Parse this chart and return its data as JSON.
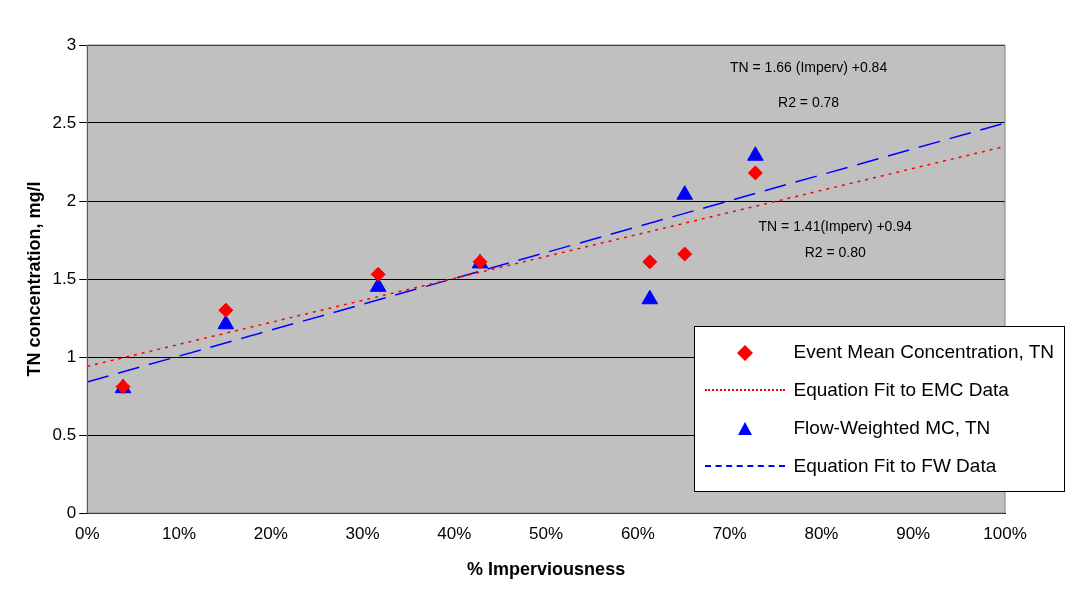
{
  "chart_data": {
    "type": "scatter",
    "xlabel": "% Imperviousness",
    "ylabel": "TN concentration, mg/l",
    "xlim": [
      0,
      100
    ],
    "xticks": [
      {
        "value": 0,
        "label": "0%"
      },
      {
        "value": 10,
        "label": "10%"
      },
      {
        "value": 20,
        "label": "20%"
      },
      {
        "value": 30,
        "label": "30%"
      },
      {
        "value": 40,
        "label": "40%"
      },
      {
        "value": 50,
        "label": "50%"
      },
      {
        "value": 60,
        "label": "60%"
      },
      {
        "value": 70,
        "label": "70%"
      },
      {
        "value": 80,
        "label": "80%"
      },
      {
        "value": 90,
        "label": "90%"
      },
      {
        "value": 100,
        "label": "100%"
      }
    ],
    "ylim": [
      0,
      3
    ],
    "yticks": [
      0,
      0.5,
      1,
      1.5,
      2,
      2.5,
      3
    ],
    "grid": "y",
    "legend": "bottom right",
    "series": [
      {
        "name": "Event Mean Concentration, TN",
        "type": "scatter",
        "marker": "diamond",
        "color": "#ff0000",
        "x": [
          3.9,
          15.1,
          31.7,
          42.8,
          61.3,
          65.1,
          72.8
        ],
        "values": [
          0.81,
          1.3,
          1.53,
          1.61,
          1.61,
          1.66,
          2.18
        ]
      },
      {
        "name": "Equation Fit to EMC Data",
        "type": "line",
        "line_style": "dotted",
        "color": "#ff0000",
        "x": [
          0,
          100
        ],
        "values": [
          0.94,
          2.35
        ]
      },
      {
        "name": "Flow-Weighted MC, TN",
        "type": "scatter",
        "marker": "triangle",
        "color": "#0000ff",
        "x": [
          3.9,
          15.1,
          31.7,
          42.8,
          61.3,
          65.1,
          72.8
        ],
        "values": [
          0.8,
          1.21,
          1.45,
          1.6,
          1.37,
          2.04,
          2.29
        ]
      },
      {
        "name": "Equation Fit to FW Data",
        "type": "line",
        "line_style": "dashed",
        "color": "#0000ff",
        "x": [
          0,
          100
        ],
        "values": [
          0.84,
          2.5
        ]
      }
    ],
    "annotations": [
      "TN = 1.66 (Imperv) +0.84",
      "R2 = 0.78",
      "TN = 1.41(Imperv) +0.94",
      "R2 = 0.80"
    ]
  }
}
